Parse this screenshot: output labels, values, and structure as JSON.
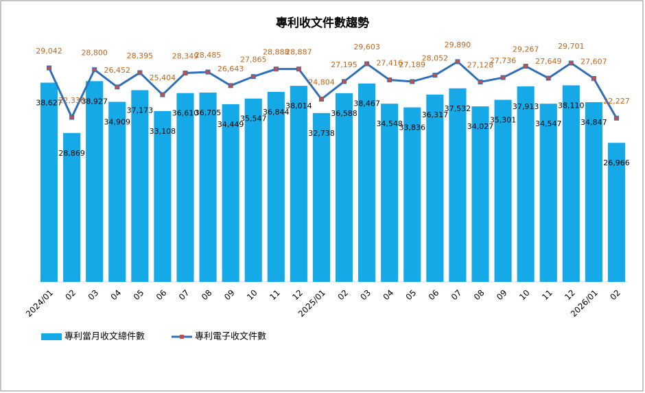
{
  "chart_data": {
    "type": "bar-line",
    "title": "專利收文件數趨勢",
    "categories": [
      "2024/01",
      "02",
      "03",
      "04",
      "05",
      "06",
      "07",
      "08",
      "09",
      "10",
      "11",
      "12",
      "2025/01",
      "02",
      "03",
      "04",
      "05",
      "06",
      "07",
      "08",
      "09",
      "10",
      "11",
      "12",
      "2026/01",
      "02"
    ],
    "series": [
      {
        "name": "專利當月收文總件數",
        "type": "bar",
        "color": "#16a9e8",
        "values": [
          38627,
          28869,
          38927,
          34909,
          37173,
          33108,
          36610,
          36705,
          34449,
          35547,
          36844,
          38014,
          32738,
          36588,
          38467,
          34548,
          33836,
          36317,
          37532,
          34027,
          35301,
          37913,
          34547,
          38110,
          34847,
          26966
        ],
        "value_labels": [
          "38,627",
          "28,869",
          "38,927",
          "34,909",
          "37,173",
          "33,108",
          "36,610",
          "36,705",
          "34,449",
          "35,547",
          "36,844",
          "38,014",
          "32,738",
          "36,588",
          "38,467",
          "34,548",
          "33,836",
          "36,317",
          "37,532",
          "34,027",
          "35,301",
          "37,913",
          "34,547",
          "38,110",
          "34,847",
          "26,966"
        ]
      },
      {
        "name": "專利電子收文件數",
        "type": "line",
        "axis": "y2",
        "color": "#2e6fb7",
        "marker_color": "#c0504d",
        "label_color": "#c0651b",
        "values": [
          29042,
          22338,
          28800,
          26452,
          28395,
          25404,
          28349,
          28485,
          26643,
          27865,
          28888,
          28887,
          24804,
          27195,
          29603,
          27416,
          27189,
          28052,
          29890,
          27128,
          27736,
          29267,
          27649,
          29701,
          27607,
          22227
        ],
        "value_labels": [
          "29,042",
          "22,338",
          "28,800",
          "26,452",
          "28,395",
          "25,404",
          "28,349",
          "28,485",
          "26,643",
          "27,865",
          "28,888",
          "28,887",
          "24,804",
          "27,195",
          "29,603",
          "27,416",
          "27,189",
          "28,052",
          "29,890",
          "27,128",
          "27,736",
          "29,267",
          "27,649",
          "29,701",
          "27,607",
          "22,227"
        ]
      }
    ],
    "ylim": [
      0,
      50000
    ],
    "y2lim": [
      0,
      35000
    ],
    "legend": "bottom-left"
  }
}
